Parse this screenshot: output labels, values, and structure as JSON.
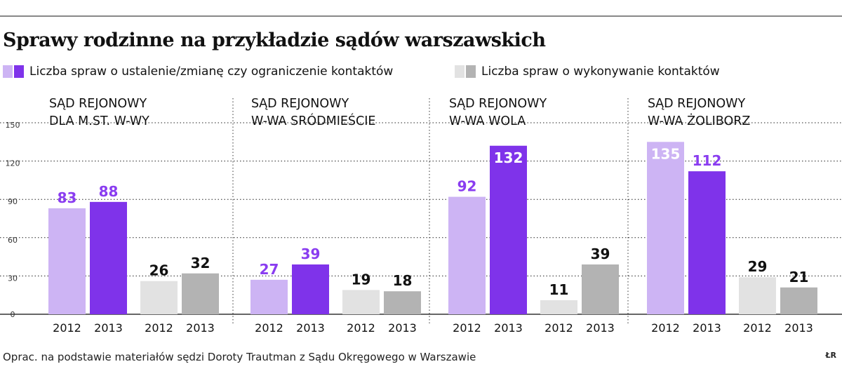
{
  "title": "Sprawy rodzinne na przykładzie sądów warszawskich",
  "legend": {
    "a_label": "Liczba spraw o ustalenie/zmianę czy ograniczenie kontaktów",
    "b_label": "Liczba spraw o wykonywanie kontaktów"
  },
  "footer": "Oprac. na podstawie materiałów sędzi Doroty Trautman z Sądu Okręgowego w Warszawie",
  "credit": "ŁR",
  "colors": {
    "a_2012": "#cdb4f4",
    "a_2013": "#7f33ea",
    "b_2012": "#e2e2e2",
    "b_2013": "#b3b3b3",
    "label_a": "#8a3df0",
    "label_b": "#111111"
  },
  "chart_data": {
    "type": "bar",
    "ylim": [
      0,
      150
    ],
    "yticks": [
      "0",
      "30",
      "60",
      "90",
      "120",
      "150"
    ],
    "grid": true,
    "legend_position": "top",
    "series": [
      {
        "name": "Liczba spraw o ustalenie/zmianę czy ograniczenie kontaktów",
        "years": [
          "2012",
          "2013"
        ]
      },
      {
        "name": "Liczba spraw o wykonywanie kontaktów",
        "years": [
          "2012",
          "2013"
        ]
      }
    ],
    "panels": [
      {
        "title_lines": [
          "SĄD REJONOWY",
          "DLA M.ST. W-WY"
        ],
        "a": [
          83,
          88
        ],
        "b": [
          26,
          32
        ]
      },
      {
        "title_lines": [
          "SĄD REJONOWY",
          "W-WA SRÓDMIEŚCIE"
        ],
        "a": [
          27,
          39
        ],
        "b": [
          19,
          18
        ]
      },
      {
        "title_lines": [
          "SĄD REJONOWY",
          "W-WA WOLA"
        ],
        "a": [
          92,
          132
        ],
        "b": [
          11,
          39
        ]
      },
      {
        "title_lines": [
          "SĄD REJONOWY",
          "W-WA ŻOLIBORZ"
        ],
        "a": [
          135,
          112
        ],
        "b": [
          29,
          21
        ]
      }
    ],
    "x_labels": [
      "2012",
      "2013",
      "2012",
      "2013"
    ]
  }
}
